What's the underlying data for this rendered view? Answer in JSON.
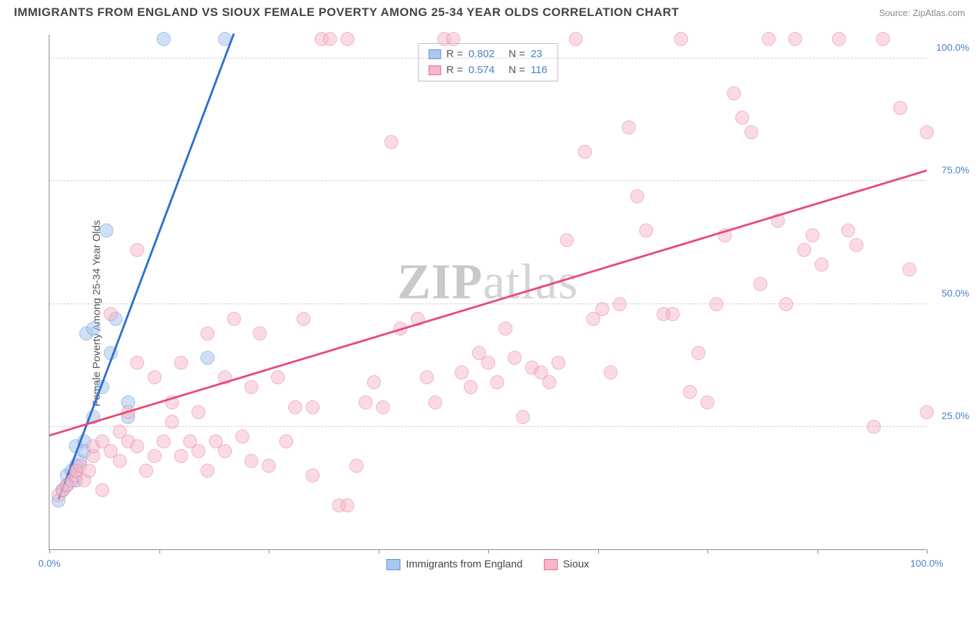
{
  "title": "IMMIGRANTS FROM ENGLAND VS SIOUX FEMALE POVERTY AMONG 25-34 YEAR OLDS CORRELATION CHART",
  "source": "Source: ZipAtlas.com",
  "ylabel": "Female Poverty Among 25-34 Year Olds",
  "watermark_a": "ZIP",
  "watermark_b": "atlas",
  "chart": {
    "type": "scatter",
    "xlim": [
      0,
      100
    ],
    "ylim": [
      0,
      105
    ],
    "xticks": [
      0,
      12.5,
      25,
      37.5,
      50,
      62.5,
      75,
      87.5,
      100
    ],
    "xticks_labeled": [
      {
        "v": 0,
        "l": "0.0%"
      },
      {
        "v": 100,
        "l": "100.0%"
      }
    ],
    "yticks": [
      {
        "v": 25,
        "l": "25.0%"
      },
      {
        "v": 50,
        "l": "50.0%"
      },
      {
        "v": 75,
        "l": "75.0%"
      },
      {
        "v": 100,
        "l": "100.0%"
      }
    ],
    "background_color": "#ffffff",
    "grid_color": "#cccccc",
    "marker_radius": 10,
    "marker_stroke_width": 1.5,
    "series": [
      {
        "name": "Immigrants from England",
        "fill": "#a9c8ef",
        "stroke": "#5b8fd6",
        "fill_opacity": 0.55,
        "stats": {
          "R": "0.802",
          "N": "23"
        },
        "trend": {
          "color": "#2f6fd0",
          "x1": 1,
          "y1": 10,
          "x2": 21,
          "y2": 105
        },
        "points": [
          [
            1,
            10
          ],
          [
            1.5,
            12
          ],
          [
            2,
            13
          ],
          [
            2,
            15
          ],
          [
            2.5,
            16
          ],
          [
            3,
            17
          ],
          [
            3,
            21
          ],
          [
            3.5,
            18
          ],
          [
            4,
            22
          ],
          [
            4,
            20
          ],
          [
            5,
            27
          ],
          [
            6,
            33
          ],
          [
            7,
            40
          ],
          [
            4.2,
            44
          ],
          [
            7.5,
            47
          ],
          [
            5,
            45
          ],
          [
            6.5,
            65
          ],
          [
            9,
            30
          ],
          [
            9,
            27
          ],
          [
            13,
            104
          ],
          [
            20,
            104
          ],
          [
            18,
            39
          ],
          [
            3,
            14
          ]
        ]
      },
      {
        "name": "Sioux",
        "fill": "#f6b8c8",
        "stroke": "#e76a8d",
        "fill_opacity": 0.5,
        "stats": {
          "R": "0.574",
          "N": "116"
        },
        "trend": {
          "color": "#e94b7a",
          "x1": 0,
          "y1": 23,
          "x2": 100,
          "y2": 77
        },
        "points": [
          [
            1,
            11
          ],
          [
            1.5,
            12
          ],
          [
            2,
            13
          ],
          [
            2.5,
            14
          ],
          [
            3,
            15
          ],
          [
            3,
            16
          ],
          [
            3.5,
            17
          ],
          [
            4,
            14
          ],
          [
            4.5,
            16
          ],
          [
            5,
            19
          ],
          [
            5,
            21
          ],
          [
            6,
            22
          ],
          [
            6,
            12
          ],
          [
            7,
            20
          ],
          [
            7,
            48
          ],
          [
            8,
            18
          ],
          [
            8,
            24
          ],
          [
            9,
            22
          ],
          [
            9,
            28
          ],
          [
            10,
            21
          ],
          [
            10,
            38
          ],
          [
            10,
            61
          ],
          [
            11,
            16
          ],
          [
            12,
            19
          ],
          [
            12,
            35
          ],
          [
            13,
            22
          ],
          [
            14,
            26
          ],
          [
            14,
            30
          ],
          [
            15,
            19
          ],
          [
            15,
            38
          ],
          [
            16,
            22
          ],
          [
            17,
            20
          ],
          [
            17,
            28
          ],
          [
            18,
            16
          ],
          [
            18,
            44
          ],
          [
            19,
            22
          ],
          [
            20,
            20
          ],
          [
            20,
            35
          ],
          [
            21,
            47
          ],
          [
            22,
            23
          ],
          [
            23,
            18
          ],
          [
            23,
            33
          ],
          [
            24,
            44
          ],
          [
            25,
            17
          ],
          [
            26,
            35
          ],
          [
            27,
            22
          ],
          [
            28,
            29
          ],
          [
            29,
            47
          ],
          [
            30,
            15
          ],
          [
            30,
            29
          ],
          [
            31,
            104
          ],
          [
            32,
            104
          ],
          [
            33,
            9
          ],
          [
            34,
            9
          ],
          [
            35,
            17
          ],
          [
            36,
            30
          ],
          [
            37,
            34
          ],
          [
            38,
            29
          ],
          [
            34,
            104
          ],
          [
            39,
            83
          ],
          [
            40,
            45
          ],
          [
            42,
            47
          ],
          [
            43,
            35
          ],
          [
            44,
            30
          ],
          [
            45,
            104
          ],
          [
            46,
            104
          ],
          [
            47,
            36
          ],
          [
            48,
            33
          ],
          [
            49,
            40
          ],
          [
            50,
            38
          ],
          [
            51,
            34
          ],
          [
            52,
            45
          ],
          [
            53,
            39
          ],
          [
            54,
            27
          ],
          [
            55,
            37
          ],
          [
            56,
            36
          ],
          [
            57,
            34
          ],
          [
            58,
            38
          ],
          [
            59,
            63
          ],
          [
            60,
            104
          ],
          [
            61,
            81
          ],
          [
            62,
            47
          ],
          [
            63,
            49
          ],
          [
            64,
            36
          ],
          [
            65,
            50
          ],
          [
            66,
            86
          ],
          [
            67,
            72
          ],
          [
            68,
            65
          ],
          [
            70,
            48
          ],
          [
            71,
            48
          ],
          [
            72,
            104
          ],
          [
            73,
            32
          ],
          [
            74,
            40
          ],
          [
            75,
            30
          ],
          [
            76,
            50
          ],
          [
            77,
            64
          ],
          [
            78,
            93
          ],
          [
            79,
            88
          ],
          [
            80,
            85
          ],
          [
            81,
            54
          ],
          [
            82,
            104
          ],
          [
            83,
            67
          ],
          [
            84,
            50
          ],
          [
            85,
            104
          ],
          [
            86,
            61
          ],
          [
            87,
            64
          ],
          [
            88,
            58
          ],
          [
            90,
            104
          ],
          [
            91,
            65
          ],
          [
            92,
            62
          ],
          [
            94,
            25
          ],
          [
            95,
            104
          ],
          [
            97,
            90
          ],
          [
            98,
            57
          ],
          [
            100,
            28
          ],
          [
            100,
            85
          ]
        ]
      }
    ],
    "bottom_legend": [
      {
        "swatch_fill": "#a9c8ef",
        "swatch_stroke": "#5b8fd6",
        "label": "Immigrants from England"
      },
      {
        "swatch_fill": "#f6b8c8",
        "swatch_stroke": "#e76a8d",
        "label": "Sioux"
      }
    ]
  }
}
